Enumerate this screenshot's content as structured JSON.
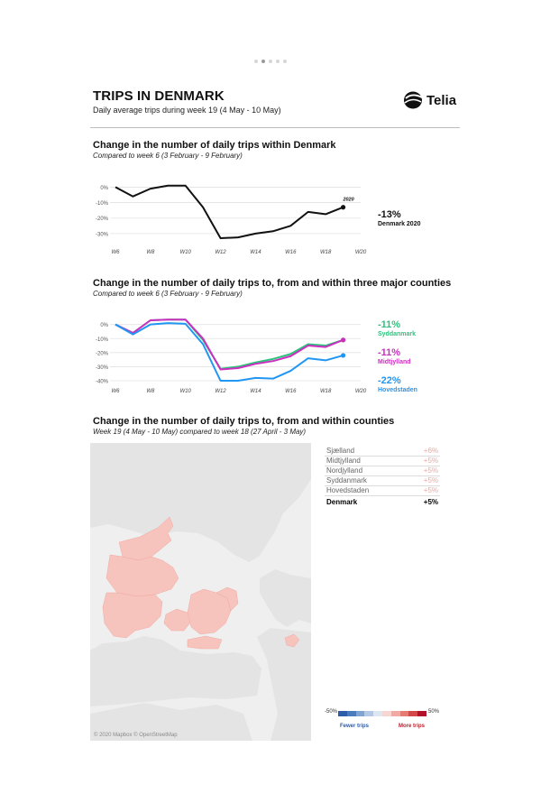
{
  "header": {
    "title": "TRIPS IN DENMARK",
    "subtitle": "Daily average trips during week 19 (4 May - 10 May)",
    "logo_text": "Telia"
  },
  "pager": {
    "count": 5,
    "active": 1
  },
  "section1": {
    "title": "Change in the number of daily trips within Denmark",
    "subtitle": "Compared to week 6 (3 February - 9 February)",
    "summary_value": "-13%",
    "summary_label": "Denmark 2020",
    "end_label": "2020"
  },
  "section2": {
    "title": "Change in the number of daily trips to, from and within three major counties",
    "subtitle": "Compared to week 6 (3 February - 9 February)",
    "summaries": [
      {
        "value": "-11%",
        "label": "Syddanmark",
        "color": "#2ec27e"
      },
      {
        "value": "-11%",
        "label": "Midtjylland",
        "color": "#cc2fbf"
      },
      {
        "value": "-22%",
        "label": "Hovedstaden",
        "color": "#2196f3"
      }
    ]
  },
  "section3": {
    "title": "Change in the number of daily trips to, from and within counties",
    "subtitle": "Week 19 (4 May - 10 May) compared to week 18 (27 April - 3 May)",
    "attribution": "© 2020 Mapbox © OpenStreetMap",
    "table": [
      {
        "name": "Sjælland",
        "value": "+6%"
      },
      {
        "name": "Midtjylland",
        "value": "+5%"
      },
      {
        "name": "Nordjylland",
        "value": "+5%"
      },
      {
        "name": "Syddanmark",
        "value": "+5%"
      },
      {
        "name": "Hovedstaden",
        "value": "+5%"
      }
    ],
    "total": {
      "name": "Denmark",
      "value": "+5%"
    },
    "legend": {
      "min_label": "-50%",
      "max_label": "50%",
      "fewer_label": "Fewer trips",
      "more_label": "More trips",
      "colors": [
        "#2b5da8",
        "#4a7bbd",
        "#7fa3d2",
        "#b3c9e6",
        "#dce7f3",
        "#f5d6d3",
        "#f0aaa3",
        "#e57b72",
        "#d4474a",
        "#b3122a"
      ]
    }
  },
  "chart_data": [
    {
      "type": "line",
      "title": "Change in the number of daily trips within Denmark",
      "x": [
        6,
        7,
        8,
        9,
        10,
        11,
        12,
        13,
        14,
        15,
        16,
        17,
        18,
        19
      ],
      "x_ticks": [
        6,
        8,
        10,
        12,
        14,
        16,
        18,
        20
      ],
      "x_tick_labels": [
        "W6",
        "W8",
        "W10",
        "W12",
        "W14",
        "W16",
        "W18",
        "W20"
      ],
      "ylim": [
        -33,
        2
      ],
      "y_ticks": [
        0,
        -10,
        -20,
        -30
      ],
      "y_tick_labels": [
        "0%",
        "-10%",
        "-20%",
        "-30%"
      ],
      "grid": true,
      "series": [
        {
          "name": "2020",
          "color": "#111111",
          "values": [
            0,
            -6,
            -1,
            1,
            1,
            -13,
            -33,
            -32.5,
            -30,
            -28.5,
            -25,
            -16,
            -17.5,
            -13
          ]
        }
      ]
    },
    {
      "type": "line",
      "title": "Change in the number of daily trips to, from and within three major counties",
      "x": [
        6,
        7,
        8,
        9,
        10,
        11,
        12,
        13,
        14,
        15,
        16,
        17,
        18,
        19
      ],
      "x_ticks": [
        6,
        8,
        10,
        12,
        14,
        16,
        18,
        20
      ],
      "x_tick_labels": [
        "W6",
        "W8",
        "W10",
        "W12",
        "W14",
        "W16",
        "W18",
        "W20"
      ],
      "ylim": [
        -40,
        3
      ],
      "y_ticks": [
        0,
        -10,
        -20,
        -30,
        -40
      ],
      "y_tick_labels": [
        "0%",
        "-10%",
        "-20%",
        "-30%",
        "-40%"
      ],
      "grid": true,
      "series": [
        {
          "name": "Syddanmark",
          "color": "#2ec27e",
          "values": [
            0,
            -6,
            3,
            3.5,
            3.5,
            -11,
            -31.5,
            -30,
            -27,
            -24.5,
            -21,
            -14,
            -15,
            -11
          ]
        },
        {
          "name": "Midtjylland",
          "color": "#cc2fbf",
          "values": [
            0,
            -6,
            3,
            3.5,
            3.5,
            -10,
            -32,
            -31,
            -28,
            -26,
            -22.5,
            -15,
            -16,
            -11
          ]
        },
        {
          "name": "Hovedstaden",
          "color": "#2196f3",
          "values": [
            0,
            -7,
            0,
            1,
            0.5,
            -14,
            -40,
            -40,
            -38,
            -38.5,
            -33,
            -24,
            -25.5,
            -22
          ]
        }
      ]
    }
  ]
}
